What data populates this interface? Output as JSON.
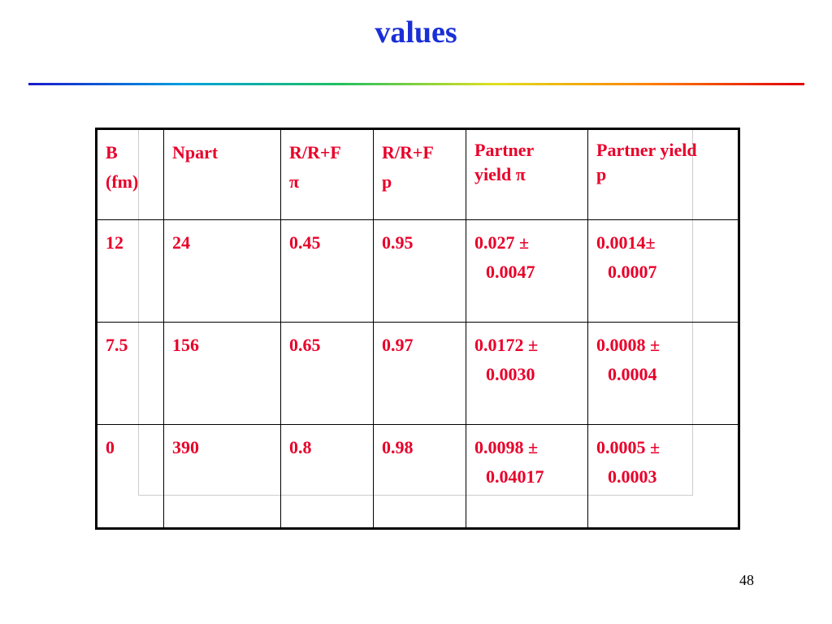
{
  "title": "values",
  "table": {
    "header": [
      [
        "B",
        "(fm)"
      ],
      [
        "Npart"
      ],
      [
        "R/R+F",
        "π"
      ],
      [
        "R/R+F",
        "p"
      ],
      [
        "Partner",
        "yield π"
      ],
      [
        "Partner yield",
        "p"
      ]
    ],
    "rows": [
      [
        [
          "12"
        ],
        [
          "24"
        ],
        [
          "0.45"
        ],
        [
          "0.95"
        ],
        [
          "0.027 ±",
          "0.0047"
        ],
        [
          "0.0014±",
          "0.0007"
        ]
      ],
      [
        [
          "7.5"
        ],
        [
          "156"
        ],
        [
          "0.65"
        ],
        [
          "0.97"
        ],
        [
          "0.0172 ±",
          "0.0030"
        ],
        [
          "0.0008 ±",
          "0.0004"
        ]
      ],
      [
        [
          "0"
        ],
        [
          "390"
        ],
        [
          "0.8"
        ],
        [
          "0.98"
        ],
        [
          "0.0098 ±",
          "0.04017"
        ],
        [
          "0.0005 ±",
          "0.0003"
        ]
      ]
    ]
  },
  "page_number": "48"
}
